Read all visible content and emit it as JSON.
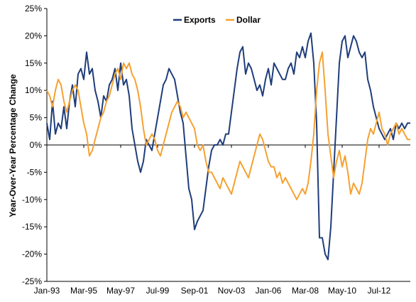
{
  "chart_data": {
    "type": "line",
    "title": "",
    "xlabel": "",
    "ylabel": "Year-Over-Year Percentage Change",
    "ylim": [
      -25,
      25
    ],
    "y_tick_labels": [
      "-25%",
      "-20%",
      "-15%",
      "-10%",
      "-5%",
      "0%",
      "5%",
      "10%",
      "15%",
      "20%",
      "25%"
    ],
    "y_ticks": [
      -25,
      -20,
      -15,
      -10,
      -5,
      0,
      5,
      10,
      15,
      20,
      25
    ],
    "x_tick_labels": [
      "Jan-93",
      "Mar-95",
      "May-97",
      "Jul-99",
      "Sep-01",
      "Nov-03",
      "Jan-06",
      "Mar-08",
      "May-10",
      "Jul-12"
    ],
    "x_ticks": [
      "1993-01",
      "1995-03",
      "1997-05",
      "1999-07",
      "2001-09",
      "2003-11",
      "2006-01",
      "2008-03",
      "2010-05",
      "2012-07"
    ],
    "xlim": [
      "1993-01",
      "2014-05"
    ],
    "legend": {
      "position": "top-center"
    },
    "grid": false,
    "series": [
      {
        "name": "Exports",
        "color": "#1f3d7a",
        "points": [
          [
            "1993-01",
            4
          ],
          [
            "1993-03",
            1
          ],
          [
            "1993-05",
            8
          ],
          [
            "1993-07",
            2
          ],
          [
            "1993-09",
            4
          ],
          [
            "1993-11",
            3
          ],
          [
            "1994-01",
            7
          ],
          [
            "1994-03",
            3
          ],
          [
            "1994-05",
            8
          ],
          [
            "1994-07",
            11
          ],
          [
            "1994-09",
            7
          ],
          [
            "1994-11",
            13
          ],
          [
            "1995-01",
            14
          ],
          [
            "1995-03",
            12
          ],
          [
            "1995-05",
            17
          ],
          [
            "1995-07",
            13
          ],
          [
            "1995-09",
            14
          ],
          [
            "1995-11",
            10
          ],
          [
            "1996-01",
            8
          ],
          [
            "1996-03",
            5
          ],
          [
            "1996-05",
            9
          ],
          [
            "1996-07",
            8
          ],
          [
            "1996-09",
            11
          ],
          [
            "1996-11",
            12
          ],
          [
            "1997-01",
            14
          ],
          [
            "1997-03",
            10
          ],
          [
            "1997-05",
            15
          ],
          [
            "1997-07",
            11
          ],
          [
            "1997-09",
            12
          ],
          [
            "1997-11",
            9
          ],
          [
            "1998-01",
            3
          ],
          [
            "1998-03",
            0
          ],
          [
            "1998-05",
            -3
          ],
          [
            "1998-07",
            -5
          ],
          [
            "1998-09",
            -3
          ],
          [
            "1998-11",
            1
          ],
          [
            "1999-01",
            0
          ],
          [
            "1999-03",
            -1
          ],
          [
            "1999-05",
            2
          ],
          [
            "1999-07",
            5
          ],
          [
            "1999-09",
            8
          ],
          [
            "1999-11",
            11
          ],
          [
            "2000-01",
            12
          ],
          [
            "2000-03",
            14
          ],
          [
            "2000-05",
            13
          ],
          [
            "2000-07",
            12
          ],
          [
            "2000-09",
            9
          ],
          [
            "2000-11",
            6
          ],
          [
            "2001-01",
            4
          ],
          [
            "2001-03",
            -2
          ],
          [
            "2001-05",
            -8
          ],
          [
            "2001-07",
            -10
          ],
          [
            "2001-09",
            -15.5
          ],
          [
            "2001-11",
            -14
          ],
          [
            "2002-01",
            -13
          ],
          [
            "2002-03",
            -12
          ],
          [
            "2002-05",
            -8
          ],
          [
            "2002-07",
            -4
          ],
          [
            "2002-09",
            -1
          ],
          [
            "2002-11",
            0
          ],
          [
            "2003-01",
            0
          ],
          [
            "2003-03",
            1
          ],
          [
            "2003-05",
            0
          ],
          [
            "2003-07",
            2
          ],
          [
            "2003-09",
            2
          ],
          [
            "2003-11",
            6
          ],
          [
            "2004-01",
            10
          ],
          [
            "2004-03",
            14
          ],
          [
            "2004-05",
            17
          ],
          [
            "2004-07",
            18
          ],
          [
            "2004-09",
            13
          ],
          [
            "2004-11",
            15
          ],
          [
            "2005-01",
            14
          ],
          [
            "2005-03",
            12
          ],
          [
            "2005-05",
            10
          ],
          [
            "2005-07",
            11
          ],
          [
            "2005-09",
            9
          ],
          [
            "2005-11",
            12
          ],
          [
            "2006-01",
            14
          ],
          [
            "2006-03",
            11
          ],
          [
            "2006-05",
            15
          ],
          [
            "2006-07",
            14
          ],
          [
            "2006-09",
            13
          ],
          [
            "2006-11",
            12
          ],
          [
            "2007-01",
            12
          ],
          [
            "2007-03",
            14
          ],
          [
            "2007-05",
            15
          ],
          [
            "2007-07",
            13
          ],
          [
            "2007-09",
            17
          ],
          [
            "2007-11",
            16
          ],
          [
            "2008-01",
            18
          ],
          [
            "2008-03",
            16
          ],
          [
            "2008-05",
            19
          ],
          [
            "2008-07",
            20.5
          ],
          [
            "2008-09",
            15
          ],
          [
            "2008-11",
            4
          ],
          [
            "2009-01",
            -17
          ],
          [
            "2009-03",
            -17
          ],
          [
            "2009-05",
            -20
          ],
          [
            "2009-07",
            -21
          ],
          [
            "2009-09",
            -15
          ],
          [
            "2009-11",
            -5
          ],
          [
            "2010-01",
            5
          ],
          [
            "2010-03",
            15
          ],
          [
            "2010-05",
            19
          ],
          [
            "2010-07",
            20
          ],
          [
            "2010-09",
            16
          ],
          [
            "2010-11",
            18
          ],
          [
            "2011-01",
            20
          ],
          [
            "2011-03",
            19
          ],
          [
            "2011-05",
            17
          ],
          [
            "2011-07",
            16
          ],
          [
            "2011-09",
            17
          ],
          [
            "2011-11",
            12
          ],
          [
            "2012-01",
            10
          ],
          [
            "2012-03",
            7
          ],
          [
            "2012-05",
            5
          ],
          [
            "2012-07",
            3
          ],
          [
            "2012-09",
            2
          ],
          [
            "2012-11",
            1
          ],
          [
            "2013-01",
            2
          ],
          [
            "2013-03",
            3
          ],
          [
            "2013-05",
            1
          ],
          [
            "2013-07",
            4
          ],
          [
            "2013-09",
            3
          ],
          [
            "2013-11",
            4
          ],
          [
            "2014-01",
            3
          ],
          [
            "2014-03",
            4
          ],
          [
            "2014-05",
            4
          ]
        ]
      },
      {
        "name": "Dollar",
        "color": "#f5a130",
        "points": [
          [
            "1993-01",
            10
          ],
          [
            "1993-03",
            9
          ],
          [
            "1993-05",
            7
          ],
          [
            "1993-07",
            10
          ],
          [
            "1993-09",
            12
          ],
          [
            "1993-11",
            11
          ],
          [
            "1994-01",
            8
          ],
          [
            "1994-03",
            6
          ],
          [
            "1994-05",
            8
          ],
          [
            "1994-07",
            10
          ],
          [
            "1994-09",
            11
          ],
          [
            "1994-11",
            10
          ],
          [
            "1995-01",
            7
          ],
          [
            "1995-03",
            4
          ],
          [
            "1995-05",
            2
          ],
          [
            "1995-07",
            -2
          ],
          [
            "1995-09",
            -1
          ],
          [
            "1995-11",
            1
          ],
          [
            "1996-01",
            3
          ],
          [
            "1996-03",
            5
          ],
          [
            "1996-05",
            6
          ],
          [
            "1996-07",
            8
          ],
          [
            "1996-09",
            9
          ],
          [
            "1996-11",
            11
          ],
          [
            "1997-01",
            13
          ],
          [
            "1997-03",
            14
          ],
          [
            "1997-05",
            12
          ],
          [
            "1997-07",
            15
          ],
          [
            "1997-09",
            14
          ],
          [
            "1997-11",
            15
          ],
          [
            "1998-01",
            13
          ],
          [
            "1998-03",
            12
          ],
          [
            "1998-05",
            10
          ],
          [
            "1998-07",
            7
          ],
          [
            "1998-09",
            3
          ],
          [
            "1998-11",
            0
          ],
          [
            "1999-01",
            1
          ],
          [
            "1999-03",
            2
          ],
          [
            "1999-05",
            1
          ],
          [
            "1999-07",
            -1
          ],
          [
            "1999-09",
            -2
          ],
          [
            "1999-11",
            0
          ],
          [
            "2000-01",
            2
          ],
          [
            "2000-03",
            4
          ],
          [
            "2000-05",
            6
          ],
          [
            "2000-07",
            7
          ],
          [
            "2000-09",
            8
          ],
          [
            "2000-11",
            7
          ],
          [
            "2001-01",
            5
          ],
          [
            "2001-03",
            6
          ],
          [
            "2001-05",
            5
          ],
          [
            "2001-07",
            4
          ],
          [
            "2001-09",
            3
          ],
          [
            "2001-11",
            0
          ],
          [
            "2002-01",
            -1
          ],
          [
            "2002-03",
            0
          ],
          [
            "2002-05",
            -3
          ],
          [
            "2002-07",
            -5
          ],
          [
            "2002-09",
            -5
          ],
          [
            "2002-11",
            -6
          ],
          [
            "2003-01",
            -7
          ],
          [
            "2003-03",
            -8
          ],
          [
            "2003-05",
            -6
          ],
          [
            "2003-07",
            -7
          ],
          [
            "2003-09",
            -8
          ],
          [
            "2003-11",
            -9
          ],
          [
            "2004-01",
            -7
          ],
          [
            "2004-03",
            -5
          ],
          [
            "2004-05",
            -3
          ],
          [
            "2004-07",
            -4
          ],
          [
            "2004-09",
            -5
          ],
          [
            "2004-11",
            -6
          ],
          [
            "2005-01",
            -4
          ],
          [
            "2005-03",
            -2
          ],
          [
            "2005-05",
            0
          ],
          [
            "2005-07",
            2
          ],
          [
            "2005-09",
            1
          ],
          [
            "2005-11",
            -1
          ],
          [
            "2006-01",
            -3
          ],
          [
            "2006-03",
            -4
          ],
          [
            "2006-05",
            -4
          ],
          [
            "2006-07",
            -6
          ],
          [
            "2006-09",
            -5
          ],
          [
            "2006-11",
            -7
          ],
          [
            "2007-01",
            -6
          ],
          [
            "2007-03",
            -7
          ],
          [
            "2007-05",
            -8
          ],
          [
            "2007-07",
            -9
          ],
          [
            "2007-09",
            -10
          ],
          [
            "2007-11",
            -9
          ],
          [
            "2008-01",
            -8
          ],
          [
            "2008-03",
            -9
          ],
          [
            "2008-05",
            -7
          ],
          [
            "2008-07",
            -3
          ],
          [
            "2008-09",
            2
          ],
          [
            "2008-11",
            10
          ],
          [
            "2009-01",
            15
          ],
          [
            "2009-03",
            17
          ],
          [
            "2009-05",
            10
          ],
          [
            "2009-07",
            2
          ],
          [
            "2009-09",
            -2
          ],
          [
            "2009-11",
            -6
          ],
          [
            "2010-01",
            -3
          ],
          [
            "2010-03",
            -1
          ],
          [
            "2010-05",
            -4
          ],
          [
            "2010-07",
            -2
          ],
          [
            "2010-09",
            -5
          ],
          [
            "2010-11",
            -9
          ],
          [
            "2011-01",
            -7
          ],
          [
            "2011-03",
            -8
          ],
          [
            "2011-05",
            -9
          ],
          [
            "2011-07",
            -7
          ],
          [
            "2011-09",
            -3
          ],
          [
            "2011-11",
            1
          ],
          [
            "2012-01",
            3
          ],
          [
            "2012-03",
            2
          ],
          [
            "2012-05",
            4
          ],
          [
            "2012-07",
            6
          ],
          [
            "2012-09",
            3
          ],
          [
            "2012-11",
            2
          ],
          [
            "2013-01",
            0
          ],
          [
            "2013-03",
            2
          ],
          [
            "2013-05",
            3
          ],
          [
            "2013-07",
            4
          ],
          [
            "2013-09",
            2
          ],
          [
            "2013-11",
            3
          ],
          [
            "2014-01",
            2
          ],
          [
            "2014-03",
            1
          ],
          [
            "2014-05",
            1
          ]
        ]
      }
    ]
  }
}
